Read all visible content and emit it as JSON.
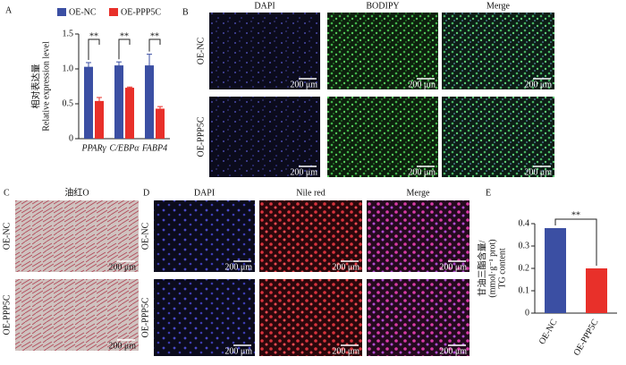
{
  "chart_data": [
    {
      "type": "bar",
      "panel": "A",
      "ylabel": "相对表达量",
      "ylabel_en": "Relative expression level",
      "categories": [
        "PPARγ",
        "C/EBPα",
        "FABP4"
      ],
      "series": [
        {
          "name": "OE-NC",
          "color": "#3b4fa3",
          "values": [
            1.03,
            1.05,
            1.05
          ],
          "errors": [
            0.06,
            0.05,
            0.16
          ]
        },
        {
          "name": "OE-PPP5C",
          "color": "#e8302a",
          "values": [
            0.54,
            0.73,
            0.43
          ],
          "errors": [
            0.05,
            0.01,
            0.03
          ]
        }
      ],
      "annotations": [
        "**",
        "**",
        "**"
      ],
      "ylim": [
        0,
        1.5
      ],
      "yticks": [
        0,
        0.5,
        {
          "value": 1,
          "label": "1.0"
        },
        1.5
      ]
    },
    {
      "type": "bar",
      "panel": "E",
      "ylabel": [
        "甘油三酯含量/",
        "(mmol·g⁻¹ prot)",
        "TG content"
      ],
      "categories": [
        "OE-NC",
        "OE-PPP5C"
      ],
      "values": [
        0.38,
        0.2
      ],
      "colors": [
        "#3b4fa3",
        "#e8302a"
      ],
      "annotations": [
        "**"
      ],
      "ylim": [
        0,
        0.4
      ],
      "yticks": [
        0,
        0.1,
        0.2,
        0.3,
        0.4
      ]
    }
  ],
  "panel_b": {
    "label": "B",
    "columns": [
      "DAPI",
      "BODIPY",
      "Merge"
    ],
    "rows": [
      "OE-NC",
      "OE-PPP5C"
    ],
    "scale_bar": "200 μm"
  },
  "panel_c": {
    "label": "C",
    "title": "油红O",
    "rows": [
      "OE-NC",
      "OE-PPP5C"
    ],
    "scale_bar": "200 μm"
  },
  "panel_d": {
    "label": "D",
    "columns": [
      "DAPI",
      "Nile red",
      "Merge"
    ],
    "rows": [
      "OE-NC",
      "OE-PPP5C"
    ],
    "scale_bar": "200 μm"
  }
}
